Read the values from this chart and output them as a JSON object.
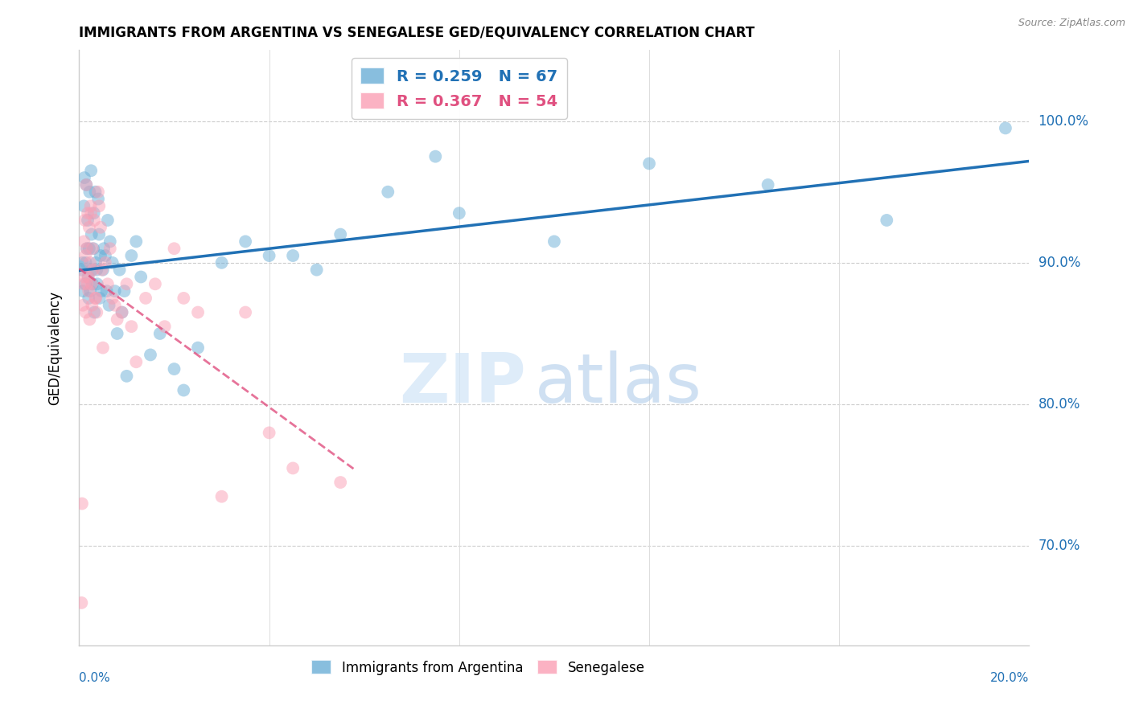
{
  "title": "IMMIGRANTS FROM ARGENTINA VS SENEGALESE GED/EQUIVALENCY CORRELATION CHART",
  "source": "Source: ZipAtlas.com",
  "ylabel": "GED/Equivalency",
  "ytick_labels": [
    "70.0%",
    "80.0%",
    "90.0%",
    "100.0%"
  ],
  "ytick_values": [
    70,
    80,
    90,
    100
  ],
  "xlim": [
    0.0,
    20.0
  ],
  "ylim": [
    63,
    105
  ],
  "R_argentina": 0.259,
  "N_argentina": 67,
  "R_senegalese": 0.367,
  "N_senegalese": 54,
  "color_argentina": "#6baed6",
  "color_senegalese": "#fa9fb5",
  "trendline_argentina_color": "#2171b5",
  "trendline_senegalese_color": "#e05080",
  "legend_label_argentina": "Immigrants from Argentina",
  "legend_label_senegalese": "Senegalese",
  "watermark_zip": "ZIP",
  "watermark_atlas": "atlas",
  "argentina_x": [
    0.05,
    0.07,
    0.08,
    0.1,
    0.11,
    0.13,
    0.14,
    0.15,
    0.16,
    0.18,
    0.19,
    0.2,
    0.21,
    0.22,
    0.23,
    0.25,
    0.26,
    0.27,
    0.28,
    0.3,
    0.31,
    0.32,
    0.34,
    0.35,
    0.37,
    0.38,
    0.4,
    0.42,
    0.43,
    0.45,
    0.47,
    0.5,
    0.52,
    0.55,
    0.58,
    0.6,
    0.63,
    0.65,
    0.7,
    0.75,
    0.8,
    0.85,
    0.9,
    0.95,
    1.0,
    1.1,
    1.2,
    1.3,
    1.5,
    1.7,
    2.0,
    2.2,
    2.5,
    3.0,
    3.5,
    4.0,
    4.5,
    5.0,
    5.5,
    6.5,
    7.5,
    8.0,
    10.0,
    12.0,
    14.5,
    17.0,
    19.5
  ],
  "argentina_y": [
    89.5,
    90.0,
    88.0,
    94.0,
    96.0,
    88.5,
    90.0,
    95.5,
    91.0,
    93.0,
    89.0,
    87.5,
    91.0,
    95.0,
    88.0,
    96.5,
    92.0,
    89.5,
    88.5,
    91.0,
    93.5,
    86.5,
    95.0,
    90.0,
    89.5,
    88.5,
    94.5,
    92.0,
    87.5,
    90.5,
    88.0,
    89.5,
    91.0,
    90.5,
    88.0,
    93.0,
    87.0,
    91.5,
    90.0,
    88.0,
    85.0,
    89.5,
    86.5,
    88.0,
    82.0,
    90.5,
    91.5,
    89.0,
    83.5,
    85.0,
    82.5,
    81.0,
    84.0,
    90.0,
    91.5,
    90.5,
    90.5,
    89.5,
    92.0,
    95.0,
    97.5,
    93.5,
    91.5,
    97.0,
    95.5,
    93.0,
    99.5
  ],
  "senegalese_x": [
    0.05,
    0.06,
    0.08,
    0.09,
    0.1,
    0.11,
    0.12,
    0.13,
    0.14,
    0.15,
    0.16,
    0.17,
    0.18,
    0.19,
    0.2,
    0.21,
    0.22,
    0.23,
    0.24,
    0.25,
    0.26,
    0.27,
    0.28,
    0.3,
    0.32,
    0.34,
    0.35,
    0.37,
    0.4,
    0.42,
    0.45,
    0.48,
    0.5,
    0.55,
    0.6,
    0.65,
    0.7,
    0.75,
    0.8,
    0.9,
    1.0,
    1.1,
    1.2,
    1.4,
    1.6,
    1.8,
    2.0,
    2.2,
    2.5,
    3.0,
    3.5,
    4.0,
    4.5,
    5.5
  ],
  "senegalese_y": [
    66.0,
    73.0,
    87.0,
    88.5,
    91.5,
    89.0,
    93.0,
    90.5,
    86.5,
    95.5,
    91.0,
    88.5,
    93.5,
    89.0,
    88.0,
    92.5,
    86.0,
    90.0,
    94.0,
    93.5,
    88.5,
    87.0,
    91.0,
    89.5,
    93.0,
    87.5,
    87.5,
    86.5,
    95.0,
    94.0,
    92.5,
    89.5,
    84.0,
    90.0,
    88.5,
    91.0,
    87.5,
    87.0,
    86.0,
    86.5,
    88.5,
    85.5,
    83.0,
    87.5,
    88.5,
    85.5,
    91.0,
    87.5,
    86.5,
    73.5,
    86.5,
    78.0,
    75.5,
    74.5
  ]
}
